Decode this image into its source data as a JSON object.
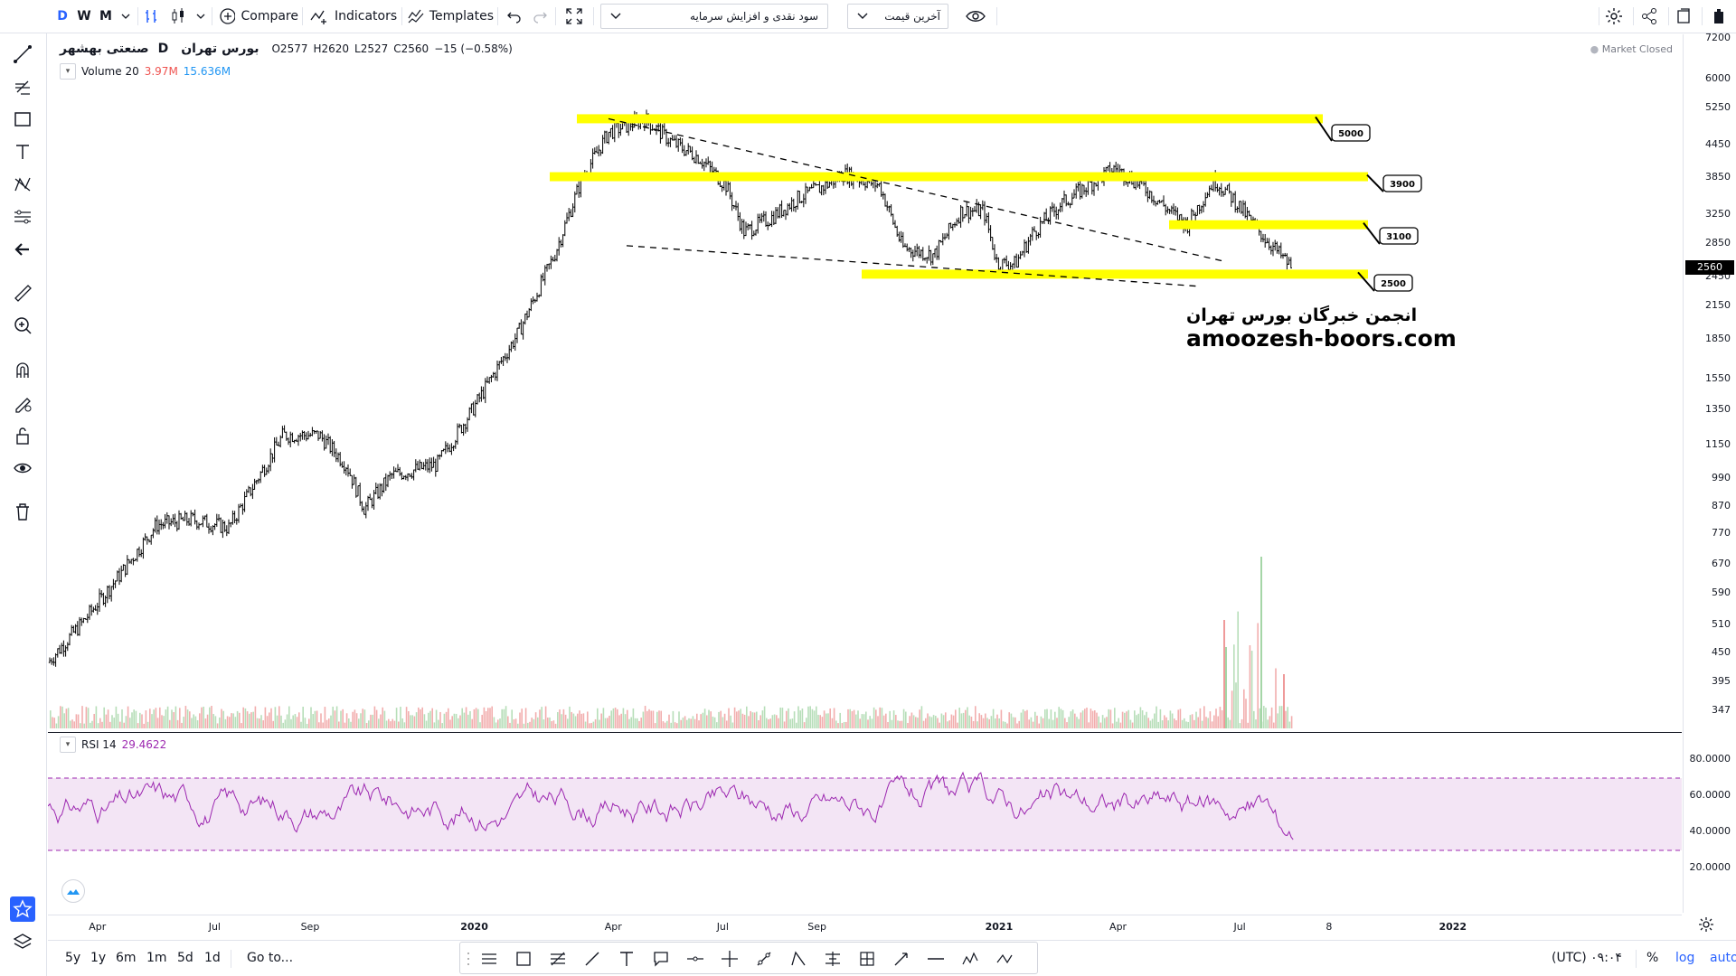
{
  "toolbar": {
    "intervals": [
      "D",
      "W",
      "M"
    ],
    "compare_label": "Compare",
    "indicators_label": "Indicators",
    "templates_label": "Templates",
    "dropdown1_value": "سود نقدی و افزایش سرمایه",
    "dropdown2_value": "آخرین قیمت"
  },
  "symbol": {
    "name": "صنعتی بهشهر",
    "interval": "D",
    "exchange": "بورس تهران",
    "open_label": "O2577",
    "high_label": "H2620",
    "low_label": "L2527",
    "close_label": "C2560",
    "change_label": "−15 (−0.58%)"
  },
  "volume": {
    "label": "Volume 20",
    "value1": "3.97M",
    "value2": "15.636M"
  },
  "rsi": {
    "label": "RSI 14",
    "value": "29.4622"
  },
  "market_status": "Market Closed",
  "watermark": {
    "line1": "انجمن خبرگان بورس تهران",
    "line2": "amoozesh-boors.com"
  },
  "chart_data": {
    "type": "candlestick",
    "price_axis_ticks": [
      "7200",
      "6000",
      "5250",
      "4450",
      "3850",
      "3250",
      "2850",
      "2450",
      "2150",
      "1850",
      "1550",
      "1350",
      "1150",
      "990",
      "870",
      "770",
      "670",
      "590",
      "510",
      "450",
      "395",
      "347"
    ],
    "current_price": "2560",
    "rsi_axis_ticks": [
      "80.0000",
      "60.0000",
      "40.0000",
      "20.0000"
    ],
    "time_labels": [
      "Apr",
      "Jul",
      "Sep",
      "2020",
      "Apr",
      "Jul",
      "Sep",
      "2021",
      "Apr",
      "Jul",
      "8",
      "2022"
    ],
    "scale": "log",
    "level_labels": [
      "5000",
      "3900",
      "3100",
      "2500"
    ],
    "rsi_bands": [
      70,
      30
    ],
    "colors": {
      "level_fill": "#ffff00",
      "rsi_line": "#9c27b0",
      "rsi_band_fill": "#f3e5f5",
      "volume_up": "#a5d6a7",
      "volume_down": "#ef9a9a",
      "candles": "#000000"
    }
  },
  "bottom": {
    "ranges": [
      "5y",
      "1y",
      "6m",
      "1m",
      "5d",
      "1d"
    ],
    "goto_label": "Go to...",
    "time_display": "۰۹:۰۴ (UTC)",
    "percent_label": "%",
    "log_label": "log",
    "auto_label": "auto"
  }
}
